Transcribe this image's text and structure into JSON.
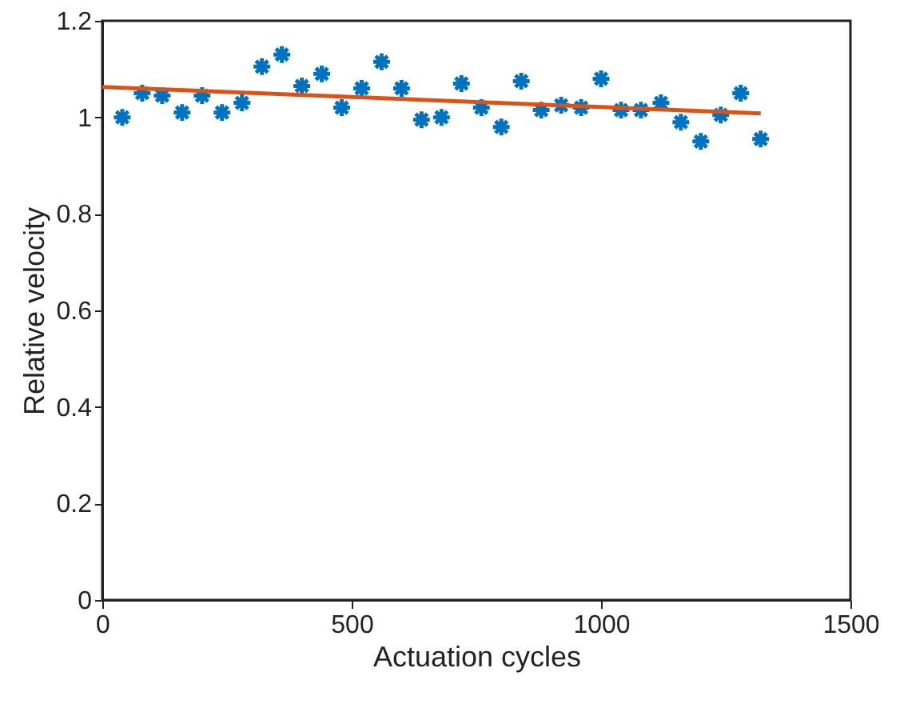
{
  "chart_data": {
    "type": "scatter",
    "xlabel": "Actuation cycles",
    "ylabel": "Relative velocity",
    "xlim": [
      0,
      1500
    ],
    "xticks": [
      0,
      500,
      1000,
      1500
    ],
    "ylim": [
      0,
      1.2
    ],
    "yticks": [
      0,
      0.2,
      0.4,
      0.6,
      0.8,
      1,
      1.2
    ],
    "grid": false,
    "series": [
      {
        "marker": "cross",
        "color": "#0072bd",
        "x": [
          40,
          80,
          120,
          160,
          200,
          240,
          280,
          320,
          360,
          400,
          440,
          480,
          520,
          560,
          600,
          640,
          680,
          720,
          760,
          800,
          840,
          880,
          920,
          960,
          1000,
          1040,
          1080,
          1120,
          1160,
          1200,
          1240,
          1280,
          1320
        ],
        "values": [
          1.0,
          1.05,
          1.045,
          1.01,
          1.045,
          1.01,
          1.03,
          1.105,
          1.13,
          1.065,
          1.09,
          1.02,
          1.06,
          1.115,
          1.06,
          0.995,
          1.0,
          1.07,
          1.02,
          0.98,
          1.075,
          1.015,
          1.025,
          1.02,
          1.08,
          1.015,
          1.015,
          1.03,
          0.99,
          0.95,
          1.005,
          1.05,
          0.955
        ]
      },
      {
        "type": "line",
        "line_style": "solid",
        "color": "#d95319",
        "x": [
          0,
          1320
        ],
        "values": [
          1.063,
          1.008
        ]
      }
    ]
  }
}
